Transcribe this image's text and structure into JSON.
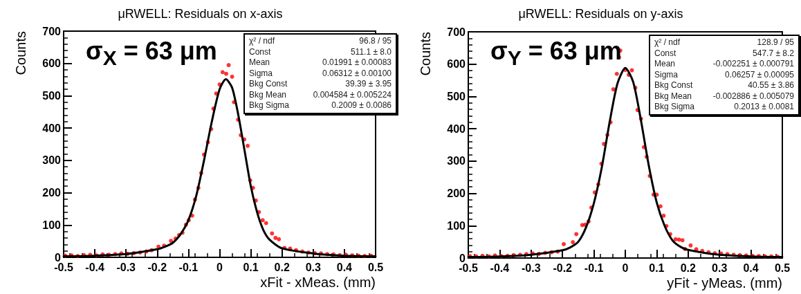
{
  "chart_data": [
    {
      "type": "scatter",
      "title": "μRWELL: Residuals on x-axis",
      "xlabel": "xFit - xMeas. (mm)",
      "ylabel": "Counts",
      "xlim": [
        -0.5,
        0.5
      ],
      "ylim": [
        0,
        700
      ],
      "xticks": [
        -0.5,
        -0.4,
        -0.3,
        -0.2,
        -0.1,
        0,
        0.1,
        0.2,
        0.3,
        0.4,
        0.5
      ],
      "yticks": [
        0,
        100,
        200,
        300,
        400,
        500,
        600,
        700
      ],
      "grid": false,
      "marker": "circle",
      "series": [
        {
          "type": "scatter",
          "color": "#ff0000",
          "x": [
            -0.495,
            -0.475,
            -0.455,
            -0.435,
            -0.415,
            -0.395,
            -0.375,
            -0.355,
            -0.335,
            -0.315,
            -0.295,
            -0.275,
            -0.255,
            -0.235,
            -0.218,
            -0.196,
            -0.178,
            -0.156,
            -0.141,
            -0.13,
            -0.119,
            -0.108,
            -0.099,
            -0.088,
            -0.079,
            -0.068,
            -0.059,
            -0.05,
            -0.0375,
            -0.027,
            -0.02,
            -0.011,
            0,
            0.0096,
            0.021,
            0.029,
            0.04,
            0.046,
            0.059,
            0.068,
            0.079,
            0.09,
            0.098,
            0.107,
            0.116,
            0.126,
            0.138,
            0.149,
            0.168,
            0.179,
            0.19,
            0.208,
            0.226,
            0.245,
            0.265,
            0.285,
            0.305,
            0.325,
            0.345,
            0.365,
            0.385,
            0.405,
            0.425,
            0.445,
            0.465,
            0.485
          ],
          "values": [
            5,
            6,
            4,
            7,
            8,
            6,
            9,
            8,
            10,
            12,
            11,
            13,
            15,
            18,
            22,
            33,
            36,
            51,
            58,
            69,
            76,
            101,
            115,
            129,
            179,
            215,
            261,
            318,
            356,
            397,
            460,
            507,
            535,
            573,
            568,
            595,
            559,
            480,
            426,
            378,
            365,
            345,
            238,
            215,
            176,
            140,
            115,
            106,
            74,
            60,
            56,
            29,
            27,
            22,
            18,
            15,
            13,
            12,
            10,
            9,
            7,
            8,
            6,
            5,
            4,
            5
          ]
        },
        {
          "type": "line",
          "color": "#000000",
          "marker": "none",
          "x": [
            -0.5,
            -0.4,
            -0.3,
            -0.2,
            -0.175,
            -0.15,
            -0.125,
            -0.1,
            -0.075,
            -0.05,
            -0.025,
            0,
            0.02,
            0.04,
            0.06,
            0.08,
            0.1,
            0.12,
            0.14,
            0.16,
            0.2,
            0.3,
            0.4,
            0.5
          ],
          "values": [
            3,
            5,
            10,
            25,
            33,
            45,
            72,
            115,
            190,
            300,
            420,
            520,
            551,
            525,
            440,
            330,
            220,
            140,
            85,
            55,
            28,
            12,
            5,
            3
          ]
        }
      ],
      "annotations": [
        "σ$_{X}$ = 63 μm",
        "χ² / ndf",
        "96.8 / 95",
        "Const",
        "511.1 ± 8.0",
        "Mean",
        "0.01991 ± 0.00083",
        "Sigma",
        "0.06312 ± 0.00100",
        "Bkg Const",
        "39.39 ± 3.95",
        "Bkg Mean",
        "0.004584 ± 0.005224",
        "Bkg Sigma",
        "0.2009 ± 0.0086"
      ]
    },
    {
      "type": "scatter",
      "title": "μRWELL: Residuals on y-axis",
      "xlabel": "yFit - yMeas. (mm)",
      "ylabel": "Counts",
      "xlim": [
        -0.5,
        0.5
      ],
      "ylim": [
        0,
        700
      ],
      "xticks": [
        -0.5,
        -0.4,
        -0.3,
        -0.2,
        -0.1,
        0,
        0.1,
        0.2,
        0.3,
        0.4,
        0.5
      ],
      "yticks": [
        0,
        100,
        200,
        300,
        400,
        500,
        600,
        700
      ],
      "grid": false,
      "marker": "circle",
      "series": [
        {
          "type": "scatter",
          "color": "#ff0000",
          "x": [
            -0.495,
            -0.475,
            -0.455,
            -0.435,
            -0.415,
            -0.395,
            -0.375,
            -0.355,
            -0.335,
            -0.315,
            -0.295,
            -0.275,
            -0.255,
            -0.235,
            -0.215,
            -0.196,
            -0.167,
            -0.156,
            -0.137,
            -0.128,
            -0.117,
            -0.108,
            -0.097,
            -0.086,
            -0.076,
            -0.068,
            -0.057,
            -0.047,
            -0.038,
            -0.027,
            -0.02,
            -0.016,
            0,
            0.011,
            0.021,
            0.032,
            0.039,
            0.05,
            0.059,
            0.068,
            0.078,
            0.09,
            0.1,
            0.112,
            0.122,
            0.131,
            0.143,
            0.16,
            0.171,
            0.182,
            0.19,
            0.208,
            0.226,
            0.245,
            0.265,
            0.285,
            0.305,
            0.325,
            0.345,
            0.365,
            0.385,
            0.405,
            0.425,
            0.445,
            0.465,
            0.485
          ],
          "values": [
            6,
            5,
            7,
            5,
            8,
            6,
            7,
            9,
            10,
            12,
            14,
            13,
            16,
            18,
            20,
            43,
            49,
            74,
            102,
            103,
            113,
            156,
            203,
            228,
            292,
            353,
            381,
            420,
            522,
            570,
            621,
            642,
            582,
            567,
            581,
            527,
            458,
            431,
            343,
            313,
            254,
            196,
            196,
            160,
            131,
            99,
            74,
            58,
            57,
            55,
            28,
            39,
            27,
            22,
            18,
            15,
            14,
            12,
            10,
            9,
            8,
            7,
            6,
            5,
            5,
            4
          ]
        },
        {
          "type": "line",
          "color": "#000000",
          "marker": "none",
          "x": [
            -0.5,
            -0.4,
            -0.3,
            -0.2,
            -0.175,
            -0.15,
            -0.125,
            -0.1,
            -0.075,
            -0.05,
            -0.025,
            0,
            0.025,
            0.05,
            0.075,
            0.1,
            0.125,
            0.15,
            0.175,
            0.2,
            0.3,
            0.4,
            0.5
          ],
          "values": [
            3,
            5,
            10,
            24,
            33,
            50,
            95,
            170,
            280,
            420,
            540,
            588,
            545,
            425,
            285,
            172,
            100,
            55,
            35,
            25,
            10,
            5,
            3
          ]
        }
      ],
      "annotations": [
        "σ$_{Y}$ = 63 μm",
        "χ² / ndf",
        "128.9 / 95",
        "Const",
        "547.7 ± 8.2",
        "Mean",
        "-0.002251 ± 0.000791",
        "Sigma",
        "0.06257 ± 0.00095",
        "Bkg Const",
        "40.55 ± 3.86",
        "Bkg Mean",
        "-0.002886 ± 0.005079",
        "Bkg Sigma",
        "0.2013 ± 0.0081"
      ]
    }
  ]
}
